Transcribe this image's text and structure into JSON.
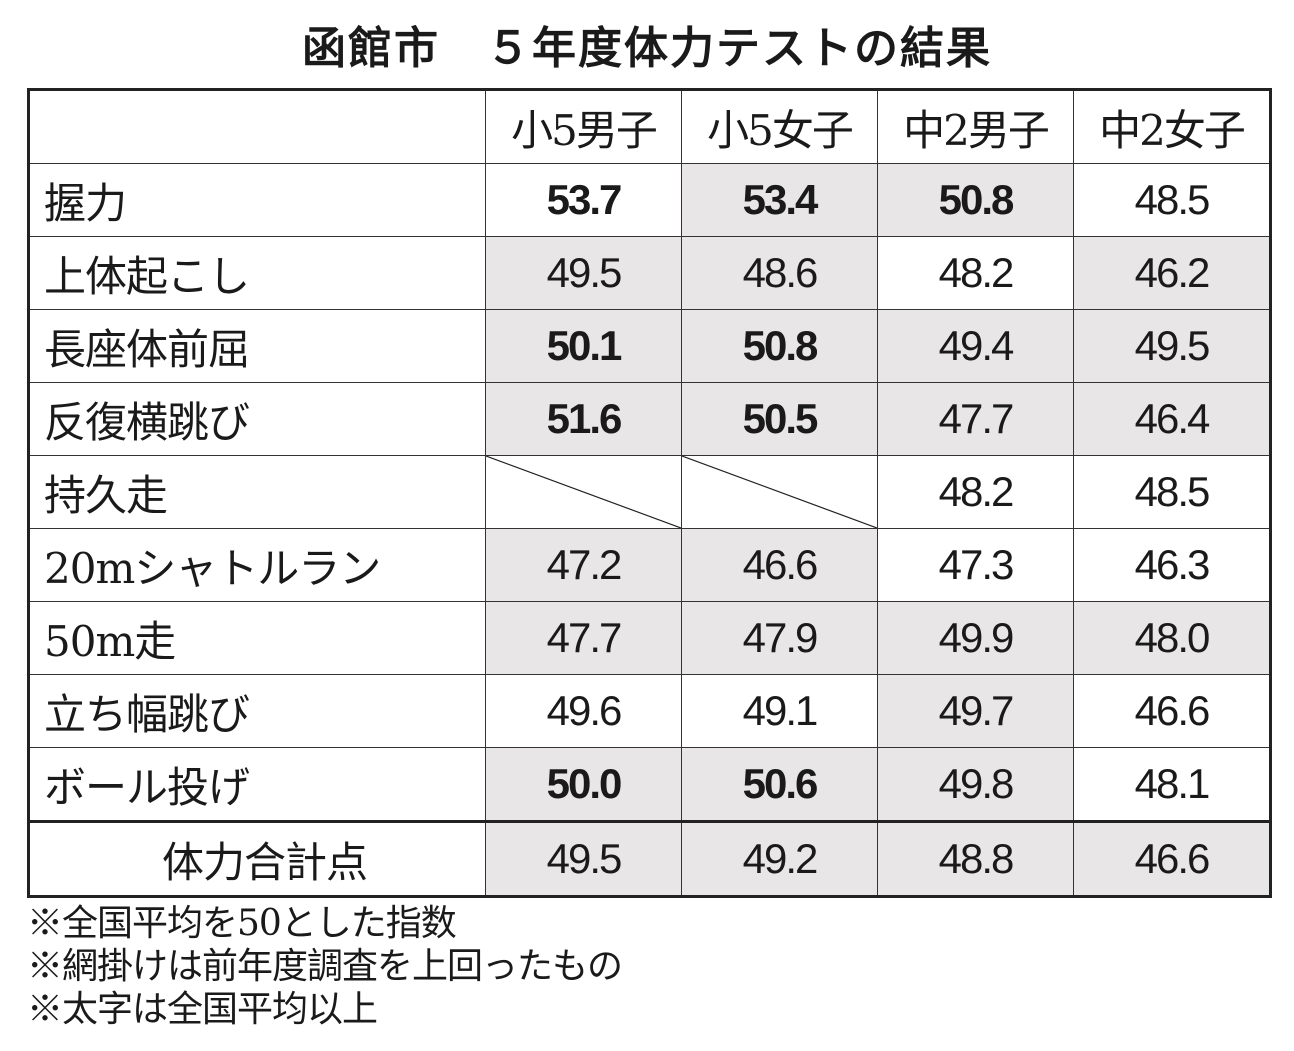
{
  "title": "函館市　５年度体力テストの結果",
  "columns": [
    "",
    "小5男子",
    "小5女子",
    "中2男子",
    "中2女子"
  ],
  "rows": [
    {
      "label": "握力",
      "cells": [
        {
          "v": "53.7",
          "bold": true,
          "shaded": false
        },
        {
          "v": "53.4",
          "bold": true,
          "shaded": true
        },
        {
          "v": "50.8",
          "bold": true,
          "shaded": true
        },
        {
          "v": "48.5",
          "bold": false,
          "shaded": false
        }
      ]
    },
    {
      "label": "上体起こし",
      "cells": [
        {
          "v": "49.5",
          "bold": false,
          "shaded": true
        },
        {
          "v": "48.6",
          "bold": false,
          "shaded": true
        },
        {
          "v": "48.2",
          "bold": false,
          "shaded": false
        },
        {
          "v": "46.2",
          "bold": false,
          "shaded": true
        }
      ]
    },
    {
      "label": "長座体前屈",
      "cells": [
        {
          "v": "50.1",
          "bold": true,
          "shaded": true
        },
        {
          "v": "50.8",
          "bold": true,
          "shaded": true
        },
        {
          "v": "49.4",
          "bold": false,
          "shaded": true
        },
        {
          "v": "49.5",
          "bold": false,
          "shaded": true
        }
      ]
    },
    {
      "label": "反復横跳び",
      "cells": [
        {
          "v": "51.6",
          "bold": true,
          "shaded": true
        },
        {
          "v": "50.5",
          "bold": true,
          "shaded": true
        },
        {
          "v": "47.7",
          "bold": false,
          "shaded": true
        },
        {
          "v": "46.4",
          "bold": false,
          "shaded": true
        }
      ]
    },
    {
      "label": "持久走",
      "cells": [
        {
          "v": null,
          "bold": false,
          "shaded": false
        },
        {
          "v": null,
          "bold": false,
          "shaded": false
        },
        {
          "v": "48.2",
          "bold": false,
          "shaded": false
        },
        {
          "v": "48.5",
          "bold": false,
          "shaded": false
        }
      ]
    },
    {
      "label": "20mシャトルラン",
      "cells": [
        {
          "v": "47.2",
          "bold": false,
          "shaded": true
        },
        {
          "v": "46.6",
          "bold": false,
          "shaded": true
        },
        {
          "v": "47.3",
          "bold": false,
          "shaded": false
        },
        {
          "v": "46.3",
          "bold": false,
          "shaded": false
        }
      ]
    },
    {
      "label": "50m走",
      "cells": [
        {
          "v": "47.7",
          "bold": false,
          "shaded": true
        },
        {
          "v": "47.9",
          "bold": false,
          "shaded": true
        },
        {
          "v": "49.9",
          "bold": false,
          "shaded": true
        },
        {
          "v": "48.0",
          "bold": false,
          "shaded": true
        }
      ]
    },
    {
      "label": "立ち幅跳び",
      "cells": [
        {
          "v": "49.6",
          "bold": false,
          "shaded": false
        },
        {
          "v": "49.1",
          "bold": false,
          "shaded": false
        },
        {
          "v": "49.7",
          "bold": false,
          "shaded": true
        },
        {
          "v": "46.6",
          "bold": false,
          "shaded": false
        }
      ]
    },
    {
      "label": "ボール投げ",
      "cells": [
        {
          "v": "50.0",
          "bold": true,
          "shaded": true
        },
        {
          "v": "50.6",
          "bold": true,
          "shaded": true
        },
        {
          "v": "49.8",
          "bold": false,
          "shaded": true
        },
        {
          "v": "48.1",
          "bold": false,
          "shaded": false
        }
      ]
    },
    {
      "label": "体力合計点",
      "total": true,
      "cells": [
        {
          "v": "49.5",
          "bold": false,
          "shaded": true
        },
        {
          "v": "49.2",
          "bold": false,
          "shaded": true
        },
        {
          "v": "48.8",
          "bold": false,
          "shaded": true
        },
        {
          "v": "46.6",
          "bold": false,
          "shaded": true
        }
      ]
    }
  ],
  "notes": [
    "※全国平均を50とした指数",
    "※網掛けは前年度調査を上回ったもの",
    "※太字は全国平均以上"
  ],
  "colors": {
    "shade": "#e8e6e6",
    "border": "#222222"
  }
}
